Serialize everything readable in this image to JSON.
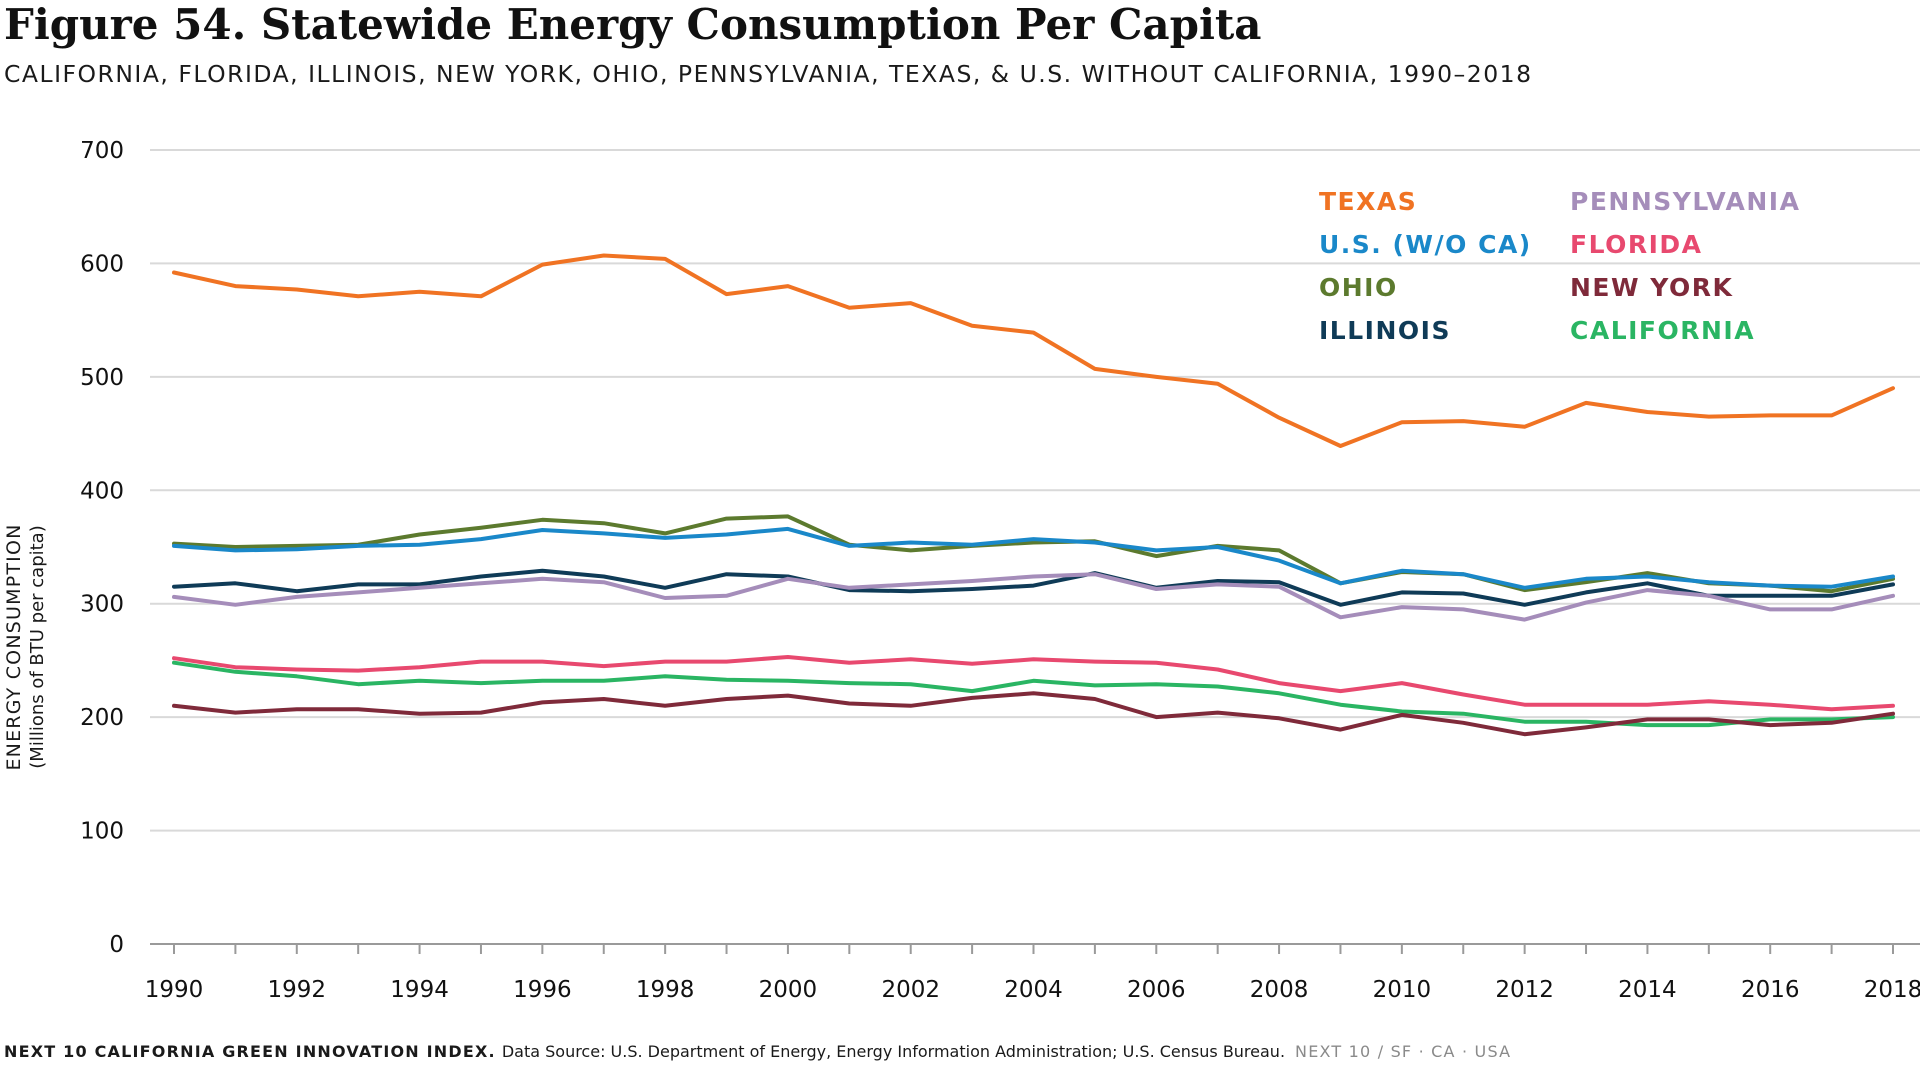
{
  "title": "Figure 54. Statewide Energy Consumption Per Capita",
  "subtitle": "CALIFORNIA, FLORIDA, ILLINOIS, NEW YORK, OHIO, PENNSYLVANIA, TEXAS, & U.S. WITHOUT CALIFORNIA, 1990–2018",
  "footer": {
    "org": "NEXT 10 CALIFORNIA GREEN INNOVATION INDEX.",
    "source": "Data Source: U.S. Department of Energy, Energy Information Administration; U.S. Census Bureau.",
    "brand": "NEXT 10 / SF · CA · USA"
  },
  "chart_data": {
    "type": "line",
    "ylabel": "ENERGY CONSUMPTION",
    "ylabel_sub": "(Millions of BTU per capita)",
    "xlabel": "",
    "ylim": [
      0,
      700
    ],
    "yticks": [
      0,
      100,
      200,
      300,
      400,
      500,
      600,
      700
    ],
    "xlim": [
      1990,
      2018
    ],
    "xtick_labels": [
      "1990",
      "1992",
      "1994",
      "1996",
      "1998",
      "2000",
      "2002",
      "2004",
      "2006",
      "2008",
      "2010",
      "2012",
      "2014",
      "2016",
      "2018"
    ],
    "grid": "horizontal",
    "legend_position": "top-right",
    "x": [
      1990,
      1991,
      1992,
      1993,
      1994,
      1995,
      1996,
      1997,
      1998,
      1999,
      2000,
      2001,
      2002,
      2003,
      2004,
      2005,
      2006,
      2007,
      2008,
      2009,
      2010,
      2011,
      2012,
      2013,
      2014,
      2015,
      2016,
      2017,
      2018
    ],
    "series": [
      {
        "name": "TEXAS",
        "color": "#f07323",
        "values": [
          592,
          580,
          577,
          571,
          575,
          571,
          599,
          607,
          604,
          573,
          580,
          561,
          565,
          545,
          539,
          507,
          500,
          494,
          464,
          439,
          460,
          461,
          456,
          477,
          469,
          465,
          466,
          466,
          490
        ]
      },
      {
        "name": "OHIO",
        "color": "#5c7a2e",
        "values": [
          353,
          350,
          351,
          352,
          361,
          367,
          374,
          371,
          362,
          375,
          377,
          352,
          347,
          351,
          354,
          355,
          342,
          351,
          347,
          318,
          328,
          326,
          312,
          319,
          327,
          318,
          316,
          311,
          322
        ]
      },
      {
        "name": "U.S. (W/O CA)",
        "color": "#1a88c9",
        "values": [
          351,
          347,
          348,
          351,
          352,
          357,
          365,
          362,
          358,
          361,
          366,
          351,
          354,
          352,
          357,
          354,
          347,
          350,
          338,
          318,
          329,
          326,
          314,
          322,
          324,
          319,
          316,
          315,
          324
        ]
      },
      {
        "name": "ILLINOIS",
        "color": "#0f3b57",
        "values": [
          315,
          318,
          311,
          317,
          317,
          324,
          329,
          324,
          314,
          326,
          324,
          312,
          311,
          313,
          316,
          327,
          314,
          320,
          319,
          299,
          310,
          309,
          299,
          310,
          318,
          307,
          307,
          307,
          317
        ]
      },
      {
        "name": "PENNSYLVANIA",
        "color": "#a58dba",
        "values": [
          306,
          299,
          306,
          310,
          314,
          318,
          322,
          319,
          305,
          307,
          322,
          314,
          317,
          320,
          324,
          326,
          313,
          317,
          315,
          288,
          297,
          295,
          286,
          301,
          312,
          307,
          295,
          295,
          307
        ]
      },
      {
        "name": "FLORIDA",
        "color": "#e8496f",
        "values": [
          252,
          244,
          242,
          241,
          244,
          249,
          249,
          245,
          249,
          249,
          253,
          248,
          251,
          247,
          251,
          249,
          248,
          242,
          230,
          223,
          230,
          220,
          211,
          211,
          211,
          214,
          211,
          207,
          210
        ]
      },
      {
        "name": "CALIFORNIA",
        "color": "#2ab563",
        "values": [
          248,
          240,
          236,
          229,
          232,
          230,
          232,
          232,
          236,
          233,
          232,
          230,
          229,
          223,
          232,
          228,
          229,
          227,
          221,
          211,
          205,
          203,
          196,
          196,
          193,
          193,
          198,
          198,
          200
        ]
      },
      {
        "name": "NEW YORK",
        "color": "#7f2a3a",
        "values": [
          210,
          204,
          207,
          207,
          203,
          204,
          213,
          216,
          210,
          216,
          219,
          212,
          210,
          217,
          221,
          216,
          200,
          204,
          199,
          189,
          202,
          195,
          185,
          191,
          198,
          198,
          193,
          195,
          203
        ]
      }
    ],
    "legend": [
      {
        "label": "TEXAS",
        "color": "#f07323"
      },
      {
        "label": "U.S. (W/O CA)",
        "color": "#1a88c9"
      },
      {
        "label": "OHIO",
        "color": "#5c7a2e"
      },
      {
        "label": "ILLINOIS",
        "color": "#0f3b57"
      },
      {
        "label": "PENNSYLVANIA",
        "color": "#a58dba"
      },
      {
        "label": "FLORIDA",
        "color": "#e8496f"
      },
      {
        "label": "NEW YORK",
        "color": "#7f2a3a"
      },
      {
        "label": "CALIFORNIA",
        "color": "#2ab563"
      }
    ]
  }
}
